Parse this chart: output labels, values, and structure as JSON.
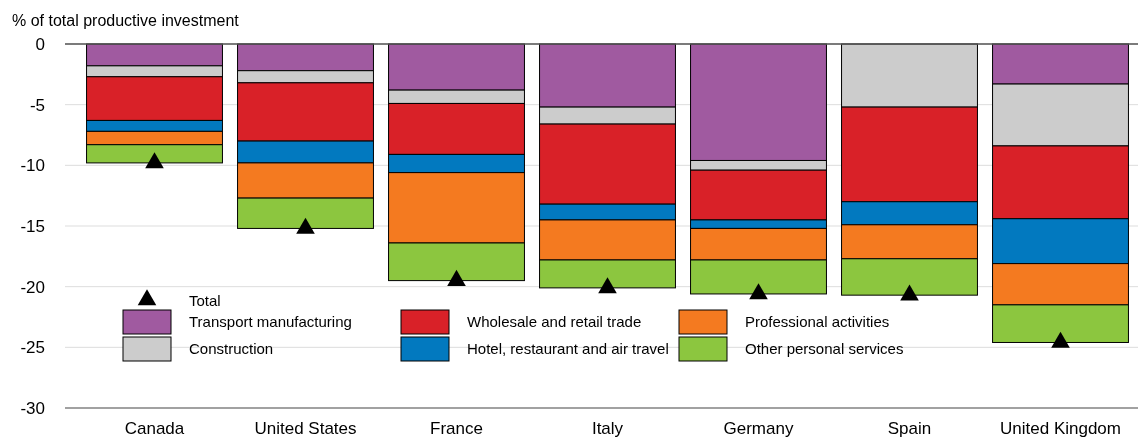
{
  "chart_data": {
    "type": "bar",
    "stacked": true,
    "ylabel": "% of total productive investment",
    "categories": [
      "Canada",
      "United States",
      "France",
      "Italy",
      "Germany",
      "Spain",
      "United Kingdom"
    ],
    "ylim": [
      -30,
      0
    ],
    "yticks": [
      0,
      -5,
      -10,
      -15,
      -20,
      -25,
      -30
    ],
    "grid": "y",
    "legend": "bottom left",
    "series": [
      {
        "name": "Transport manufacturing",
        "color": "#a05aa0",
        "values": [
          -1.8,
          -2.2,
          -3.8,
          -5.2,
          -9.6,
          0,
          -3.3
        ]
      },
      {
        "name": "Construction",
        "color": "#cccccc",
        "values": [
          -0.9,
          -1.0,
          -1.1,
          -1.4,
          -0.8,
          -5.2,
          -5.1
        ]
      },
      {
        "name": "Wholesale and retail trade",
        "color": "#d92128",
        "values": [
          -3.6,
          -4.8,
          -4.2,
          -6.6,
          -4.1,
          -7.8,
          -6.0
        ]
      },
      {
        "name": "Hotel, restaurant and air travel",
        "color": "#0279bf",
        "values": [
          -0.9,
          -1.8,
          -1.5,
          -1.3,
          -0.7,
          -1.9,
          -3.7
        ]
      },
      {
        "name": "Professional activities",
        "color": "#f47a20",
        "values": [
          -1.1,
          -2.9,
          -5.8,
          -3.3,
          -2.6,
          -2.8,
          -3.4
        ]
      },
      {
        "name": "Other personal services",
        "color": "#8cc63f",
        "values": [
          -1.5,
          -2.5,
          -3.1,
          -2.3,
          -2.8,
          -3.0,
          -3.1
        ]
      },
      {
        "name": "Total",
        "type": "scatter",
        "marker": "triangle",
        "color": "#000000",
        "x": [
          "Canada",
          "United States",
          "France",
          "Italy",
          "Germany",
          "Spain",
          "United Kingdom"
        ],
        "values": [
          -9.8,
          -15.2,
          -19.5,
          -20.1,
          -20.6,
          -20.7,
          -24.6
        ]
      }
    ]
  }
}
